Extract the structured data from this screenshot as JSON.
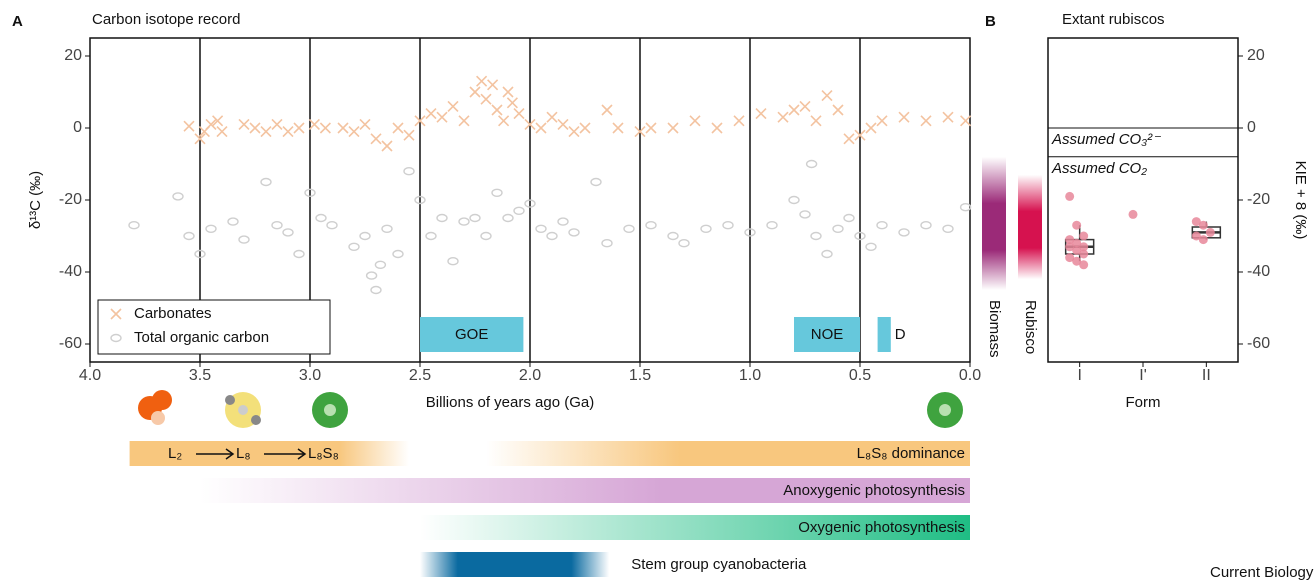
{
  "chart_data": [
    {
      "type": "scatter",
      "panel": "A",
      "title": "Carbon isotope record",
      "x_label": "Billions of years ago (Ga)",
      "y_label": "δ¹³C (‰)",
      "xlim": [
        4,
        0
      ],
      "ylim": [
        -65,
        25
      ],
      "xticks": [
        {
          "value": 4,
          "label": "4.0"
        },
        {
          "value": 3.5,
          "label": "3.5"
        },
        {
          "value": 3,
          "label": "3.0"
        },
        {
          "value": 2.5,
          "label": "2.5"
        },
        {
          "value": 2,
          "label": "2.0"
        },
        {
          "value": 1.5,
          "label": "1.5"
        },
        {
          "value": 1,
          "label": "1.0"
        },
        {
          "value": 0.5,
          "label": "0.5"
        },
        {
          "value": 0,
          "label": "0.0"
        }
      ],
      "yticks": [
        20,
        0,
        -20,
        -40,
        -60
      ],
      "vlines": [
        3.5,
        3,
        2.5,
        2,
        1.5,
        1,
        0.5
      ],
      "legend": "bottom-left",
      "series": [
        {
          "name": "Carbonates",
          "color": "#f3c3a0",
          "marker": "x",
          "x": [
            3.55,
            3.5,
            3.48,
            3.45,
            3.42,
            3.4,
            3.3,
            3.25,
            3.2,
            3.15,
            3.1,
            3.05,
            2.98,
            2.93,
            2.85,
            2.8,
            2.75,
            2.7,
            2.65,
            2.6,
            2.55,
            2.5,
            2.45,
            2.4,
            2.35,
            2.3,
            2.25,
            2.22,
            2.2,
            2.17,
            2.15,
            2.12,
            2.1,
            2.08,
            2.05,
            2.0,
            1.95,
            1.9,
            1.85,
            1.8,
            1.75,
            1.65,
            1.6,
            1.5,
            1.45,
            1.35,
            1.25,
            1.15,
            1.05,
            0.95,
            0.85,
            0.8,
            0.75,
            0.7,
            0.65,
            0.6,
            0.55,
            0.5,
            0.45,
            0.4,
            0.3,
            0.2,
            0.1,
            0.02
          ],
          "values": [
            0.5,
            -3,
            -1,
            1,
            2,
            -1,
            1,
            0,
            -1,
            1,
            -1,
            0,
            1,
            0,
            0,
            -1,
            1,
            -3,
            -5,
            0,
            -2,
            2,
            4,
            3,
            6,
            2,
            10,
            13,
            8,
            12,
            5,
            2,
            10,
            7,
            4,
            1,
            0,
            3,
            1,
            -1,
            0,
            5,
            0,
            -1,
            0,
            0,
            2,
            0,
            2,
            4,
            3,
            5,
            6,
            2,
            9,
            5,
            -3,
            -2,
            0,
            2,
            3,
            2,
            3,
            2
          ]
        },
        {
          "name": "Total organic carbon",
          "color": "#cfcfcf",
          "marker": "o",
          "x": [
            3.8,
            3.6,
            3.55,
            3.5,
            3.45,
            3.35,
            3.3,
            3.2,
            3.15,
            3.1,
            3.05,
            3.0,
            2.95,
            2.9,
            2.8,
            2.75,
            2.72,
            2.7,
            2.68,
            2.65,
            2.6,
            2.55,
            2.5,
            2.45,
            2.4,
            2.35,
            2.3,
            2.25,
            2.2,
            2.15,
            2.1,
            2.05,
            2.0,
            1.95,
            1.9,
            1.85,
            1.8,
            1.7,
            1.65,
            1.55,
            1.45,
            1.35,
            1.3,
            1.2,
            1.1,
            1.0,
            0.9,
            0.8,
            0.75,
            0.72,
            0.7,
            0.65,
            0.6,
            0.55,
            0.5,
            0.45,
            0.4,
            0.3,
            0.2,
            0.1,
            0.02
          ],
          "values": [
            -27,
            -19,
            -30,
            -35,
            -28,
            -26,
            -31,
            -15,
            -27,
            -29,
            -35,
            -18,
            -25,
            -27,
            -33,
            -30,
            -41,
            -45,
            -38,
            -28,
            -35,
            -12,
            -20,
            -30,
            -25,
            -37,
            -26,
            -25,
            -30,
            -18,
            -25,
            -23,
            -21,
            -28,
            -30,
            -26,
            -29,
            -15,
            -32,
            -28,
            -27,
            -30,
            -32,
            -28,
            -27,
            -29,
            -27,
            -20,
            -24,
            -10,
            -30,
            -35,
            -28,
            -25,
            -30,
            -33,
            -27,
            -29,
            -27,
            -28,
            -22
          ]
        }
      ],
      "events": [
        {
          "label": "GOE",
          "start": 2.5,
          "end": 2.03,
          "color": "#66c8dc"
        },
        {
          "label": "NOE",
          "start": 0.8,
          "end": 0.5,
          "color": "#66c8dc"
        },
        {
          "label": "D",
          "start": 0.42,
          "end": 0.36,
          "color": "#66c8dc"
        }
      ],
      "ranges": [
        {
          "label": "Biomass",
          "range": [
            -45,
            -8
          ],
          "color": "#9b2a78"
        },
        {
          "label": "Rubisco",
          "range": [
            -42,
            -13
          ],
          "color": "#d6124f"
        }
      ]
    },
    {
      "type": "box",
      "panel": "B",
      "title": "Extant rubiscos",
      "x_label": "Form",
      "y_label": "KIE + 8 (‰)",
      "categories": [
        "I",
        "I'",
        "II"
      ],
      "ylim": [
        -65,
        25
      ],
      "yticks": [
        20,
        0,
        -20,
        -40,
        -60
      ],
      "point_color": "#e8879a",
      "points": [
        [
          -19,
          -27,
          -30,
          -31,
          -32,
          -33,
          -33,
          -34,
          -35,
          -36,
          -37,
          -38
        ],
        [
          -24
        ],
        [
          -26,
          -27,
          -29,
          -30,
          -31
        ]
      ],
      "boxes": [
        {
          "min": -37,
          "q1": -35,
          "median": -33,
          "q3": -31,
          "max": -27
        },
        null,
        {
          "min": -31,
          "q1": -30.5,
          "median": -29,
          "q3": -27.5,
          "max": -26
        }
      ],
      "reference_lines": [
        {
          "label": "Assumed CO₃²⁻",
          "value": 0
        },
        {
          "label": "Assumed CO₂",
          "value": -8
        }
      ]
    }
  ],
  "timeline": [
    {
      "label": "L₈S₈ dominance",
      "start": 2.2,
      "end": 0,
      "color": "#f8c77e"
    },
    {
      "label": "Anoxygenic photosynthesis",
      "start": 3.5,
      "end": 0,
      "color": "#d6a6d6"
    },
    {
      "label": "Oxygenic photosynthesis",
      "start": 2.5,
      "end": 0,
      "color": "#1fbd84"
    },
    {
      "label": "Stem group cyanobacteria",
      "start": 2.5,
      "end": 1.64,
      "color": "#0a6aa0"
    }
  ],
  "assembly": {
    "labels": [
      "L₂",
      "L₈",
      "L₈S₈"
    ],
    "start": 3.82,
    "end": 2.55,
    "color": "#f8c77e"
  },
  "footer": "Current Biology"
}
